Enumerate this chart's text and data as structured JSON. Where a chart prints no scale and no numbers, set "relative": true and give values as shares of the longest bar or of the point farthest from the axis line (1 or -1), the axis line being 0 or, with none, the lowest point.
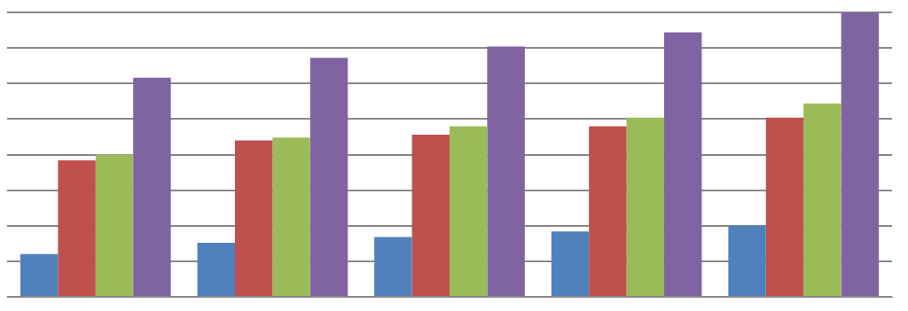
{
  "chart_data": {
    "type": "bar",
    "relative": true,
    "grid": "y",
    "legend": false,
    "categories": [
      null,
      null,
      null,
      null,
      null
    ],
    "series": [
      {
        "color": "#4f81bd",
        "values": [
          0.15,
          0.19,
          0.21,
          0.23,
          0.25
        ]
      },
      {
        "color": "#c0504d",
        "values": [
          0.48,
          0.55,
          0.57,
          0.6,
          0.63
        ]
      },
      {
        "color": "#9bbb59",
        "values": [
          0.5,
          0.56,
          0.6,
          0.63,
          0.68
        ]
      },
      {
        "color": "#8064a2",
        "values": [
          0.77,
          0.84,
          0.88,
          0.93,
          1
        ]
      }
    ]
  }
}
